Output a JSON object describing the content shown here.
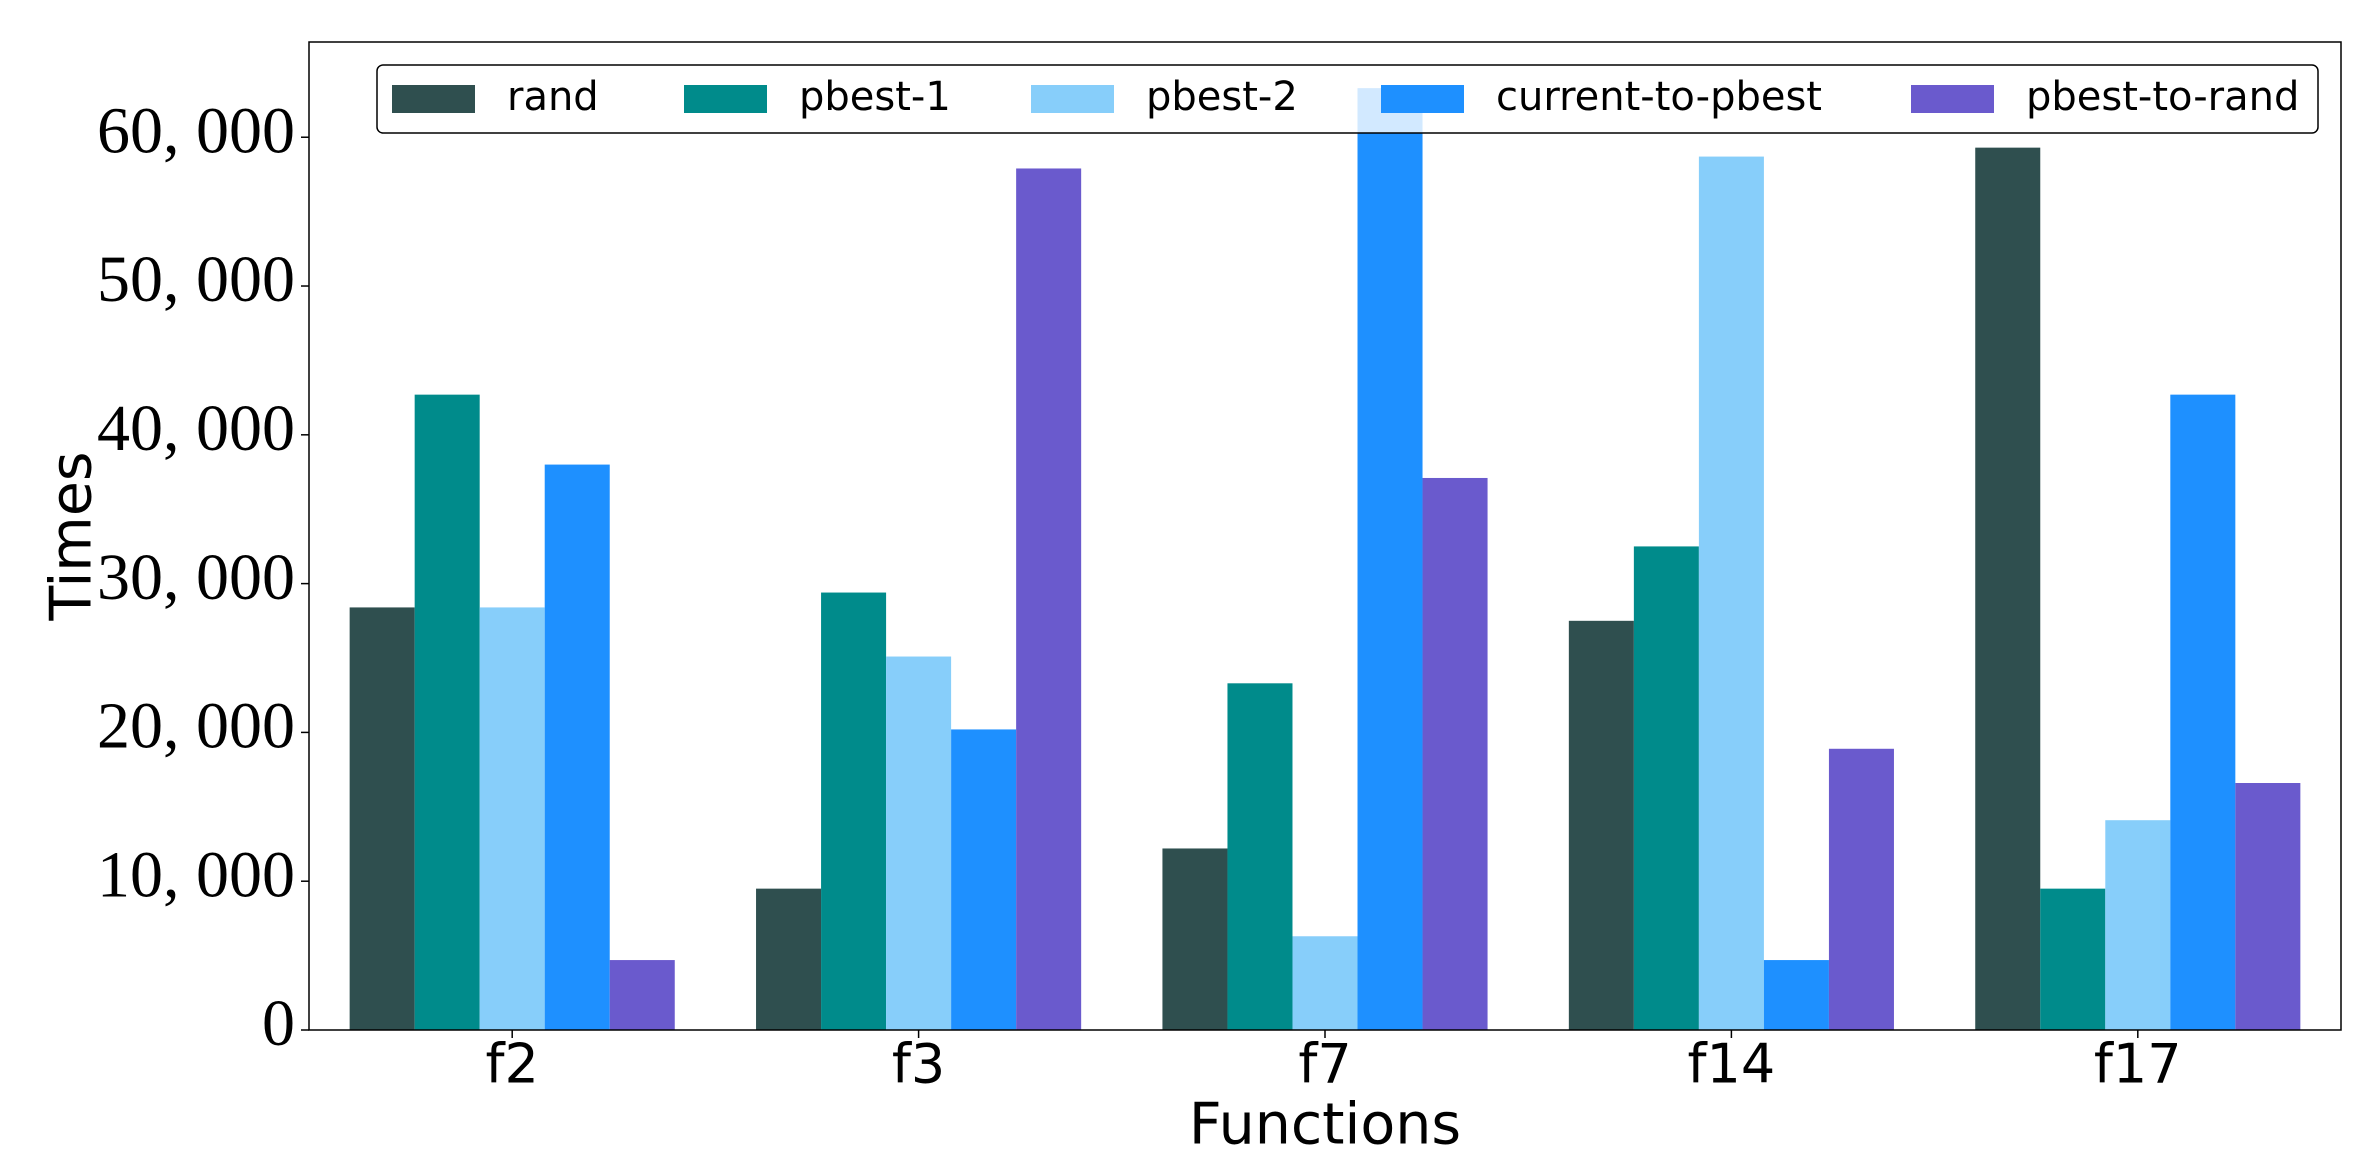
{
  "chart_data": {
    "type": "bar",
    "xlabel": "Functions",
    "ylabel": "Times",
    "categories": [
      "f2",
      "f3",
      "f7",
      "f14",
      "f17"
    ],
    "series": [
      {
        "name": "rand",
        "color": "#2f4f4f",
        "values": [
          28400,
          9500,
          12200,
          27500,
          59300
        ]
      },
      {
        "name": "pbest-1",
        "color": "#008b8b",
        "values": [
          42700,
          29400,
          23300,
          32500,
          9500
        ]
      },
      {
        "name": "pbest-2",
        "color": "#87cefa",
        "values": [
          28400,
          25100,
          6300,
          58700,
          14100
        ]
      },
      {
        "name": "current-to-pbest",
        "color": "#1e90ff",
        "values": [
          38000,
          20200,
          63300,
          4700,
          42700
        ]
      },
      {
        "name": "pbest-to-rand",
        "color": "#6a5acd",
        "values": [
          4700,
          57900,
          37100,
          18900,
          16600
        ]
      }
    ],
    "ylim": [
      0,
      66400
    ],
    "yticks": [
      0,
      {
        "value": 10000,
        "label": "10, 000"
      },
      {
        "value": 20000,
        "label": "20, 000"
      },
      {
        "value": 30000,
        "label": "30, 000"
      },
      {
        "value": 40000,
        "label": "40, 000"
      },
      {
        "value": 50000,
        "label": "50, 000"
      },
      {
        "value": 60000,
        "label": "60, 000"
      }
    ]
  }
}
